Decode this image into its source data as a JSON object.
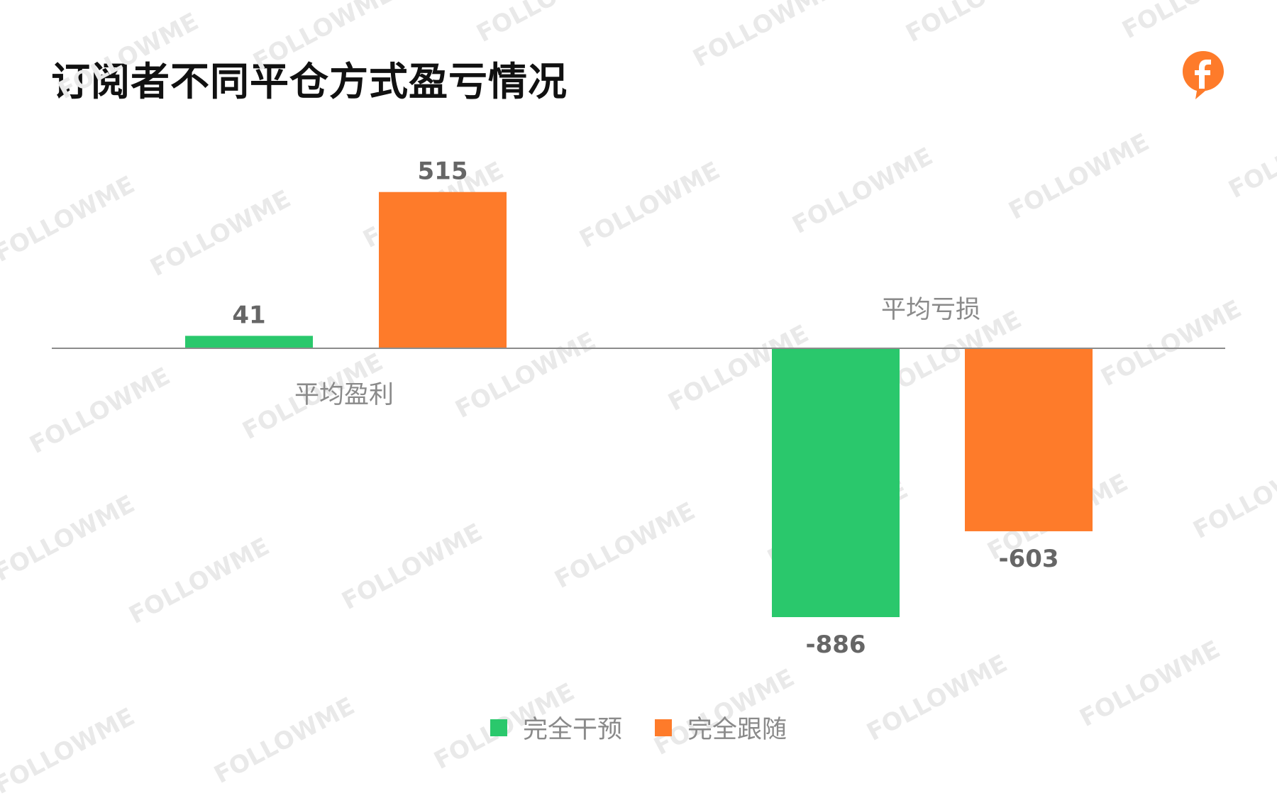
{
  "title": "订阅者不同平仓方式盈亏情况",
  "watermark_text": "FOLLOWME",
  "logo_icon": "followme-f-logo-icon",
  "colors": {
    "intervene": "#2ac86c",
    "follow": "#fe7b2a",
    "axis": "#8c8c8c",
    "label": "#666666",
    "category_label": "#8a8a8a"
  },
  "chart_data": {
    "type": "bar",
    "categories": [
      "平均盈利",
      "平均亏损"
    ],
    "series": [
      {
        "name": "完全干预",
        "values": [
          41,
          -886
        ]
      },
      {
        "name": "完全跟随",
        "values": [
          515,
          -603
        ]
      }
    ],
    "data_labels": [
      [
        "41",
        "515"
      ],
      [
        "-886",
        "-603"
      ]
    ],
    "ylim": [
      -886,
      515
    ],
    "grid": false,
    "legend_position": "bottom-center"
  }
}
